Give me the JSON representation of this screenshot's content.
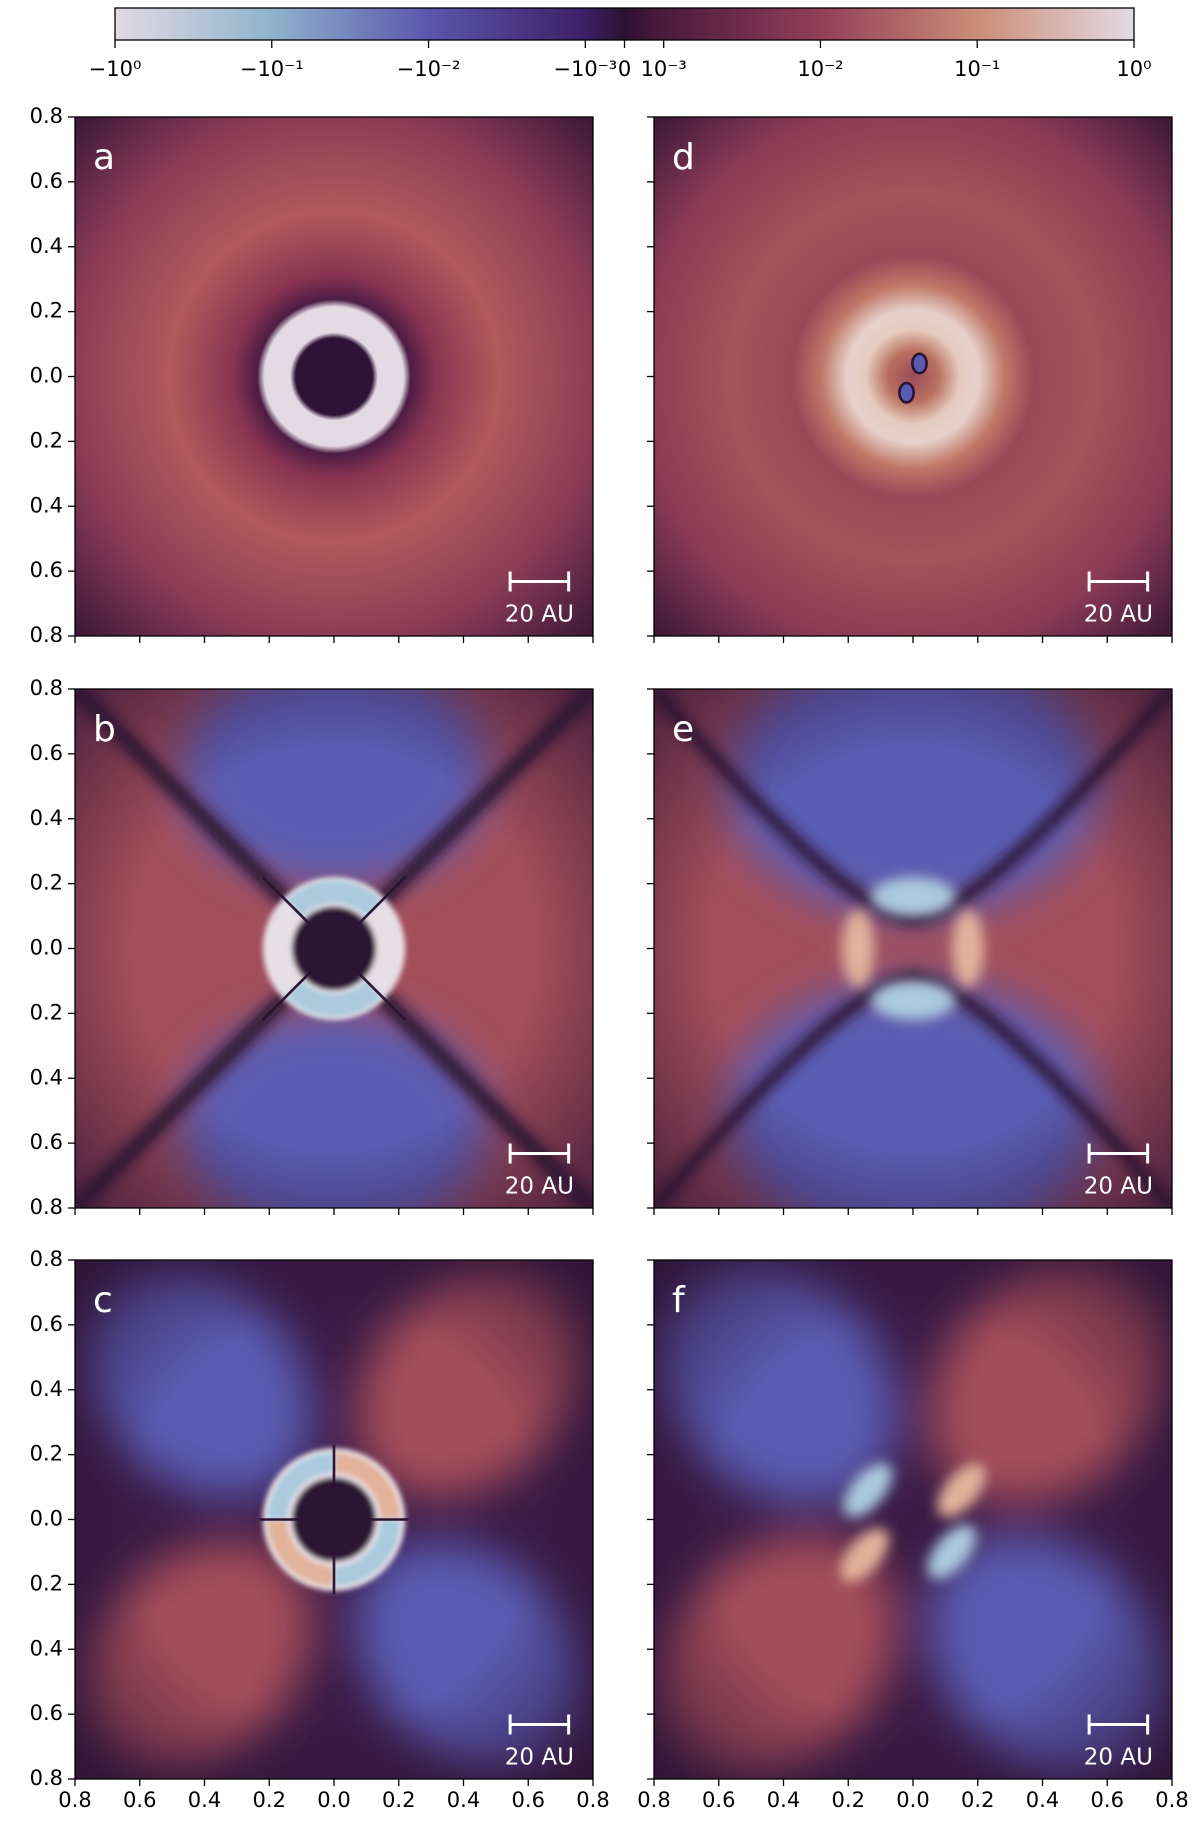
{
  "chart_data": {
    "type": "heatmap",
    "colorbar": {
      "lim": [
        -1,
        1
      ],
      "scale": "symlog",
      "linthresh": 0.001,
      "linscale": 0.25,
      "ticks": [
        {
          "value": -1,
          "label": "−10⁰"
        },
        {
          "value": -0.1,
          "label": "−10⁻¹"
        },
        {
          "value": -0.01,
          "label": "−10⁻²"
        },
        {
          "value": -0.001,
          "label": "−10⁻³"
        },
        0,
        {
          "value": 0.001,
          "label": "10⁻³"
        },
        {
          "value": 0.01,
          "label": "10⁻²"
        },
        {
          "value": 0.1,
          "label": "10⁻¹"
        },
        {
          "value": 1,
          "label": "10⁰"
        }
      ],
      "colors": [
        "#e3dae3",
        "#8fb3cc",
        "#5b56ad",
        "#3d1f66",
        "#2c1233",
        "#4b1a3d",
        "#923e58",
        "#cb8d77",
        "#e3dae3"
      ]
    },
    "xlim": [
      -0.8,
      0.8
    ],
    "ylim": [
      -0.8,
      0.8
    ],
    "xticks": [
      {
        "value": -0.8,
        "label": "0.8"
      },
      {
        "value": -0.6,
        "label": "0.6"
      },
      {
        "value": -0.4,
        "label": "0.4"
      },
      {
        "value": -0.2,
        "label": "0.2"
      },
      {
        "value": 0,
        "label": "0.0"
      },
      {
        "value": 0.2,
        "label": "0.2"
      },
      {
        "value": 0.4,
        "label": "0.4"
      },
      {
        "value": 0.6,
        "label": "0.6"
      },
      {
        "value": 0.8,
        "label": "0.8"
      }
    ],
    "yticks": [
      {
        "value": -0.8,
        "label": "0.8"
      },
      {
        "value": -0.6,
        "label": "0.6"
      },
      {
        "value": -0.4,
        "label": "0.4"
      },
      {
        "value": -0.2,
        "label": "0.2"
      },
      {
        "value": 0,
        "label": "0.0"
      },
      {
        "value": 0.2,
        "label": "0.2"
      },
      {
        "value": 0.4,
        "label": "0.4"
      },
      {
        "value": 0.6,
        "label": "0.6"
      },
      {
        "value": 0.8,
        "label": "0.8"
      }
    ],
    "scale_bar_label": "20 AU",
    "panels": [
      {
        "label": "a"
      },
      {
        "label": "b"
      },
      {
        "label": "c"
      },
      {
        "label": "d"
      },
      {
        "label": "e"
      },
      {
        "label": "f"
      }
    ]
  }
}
